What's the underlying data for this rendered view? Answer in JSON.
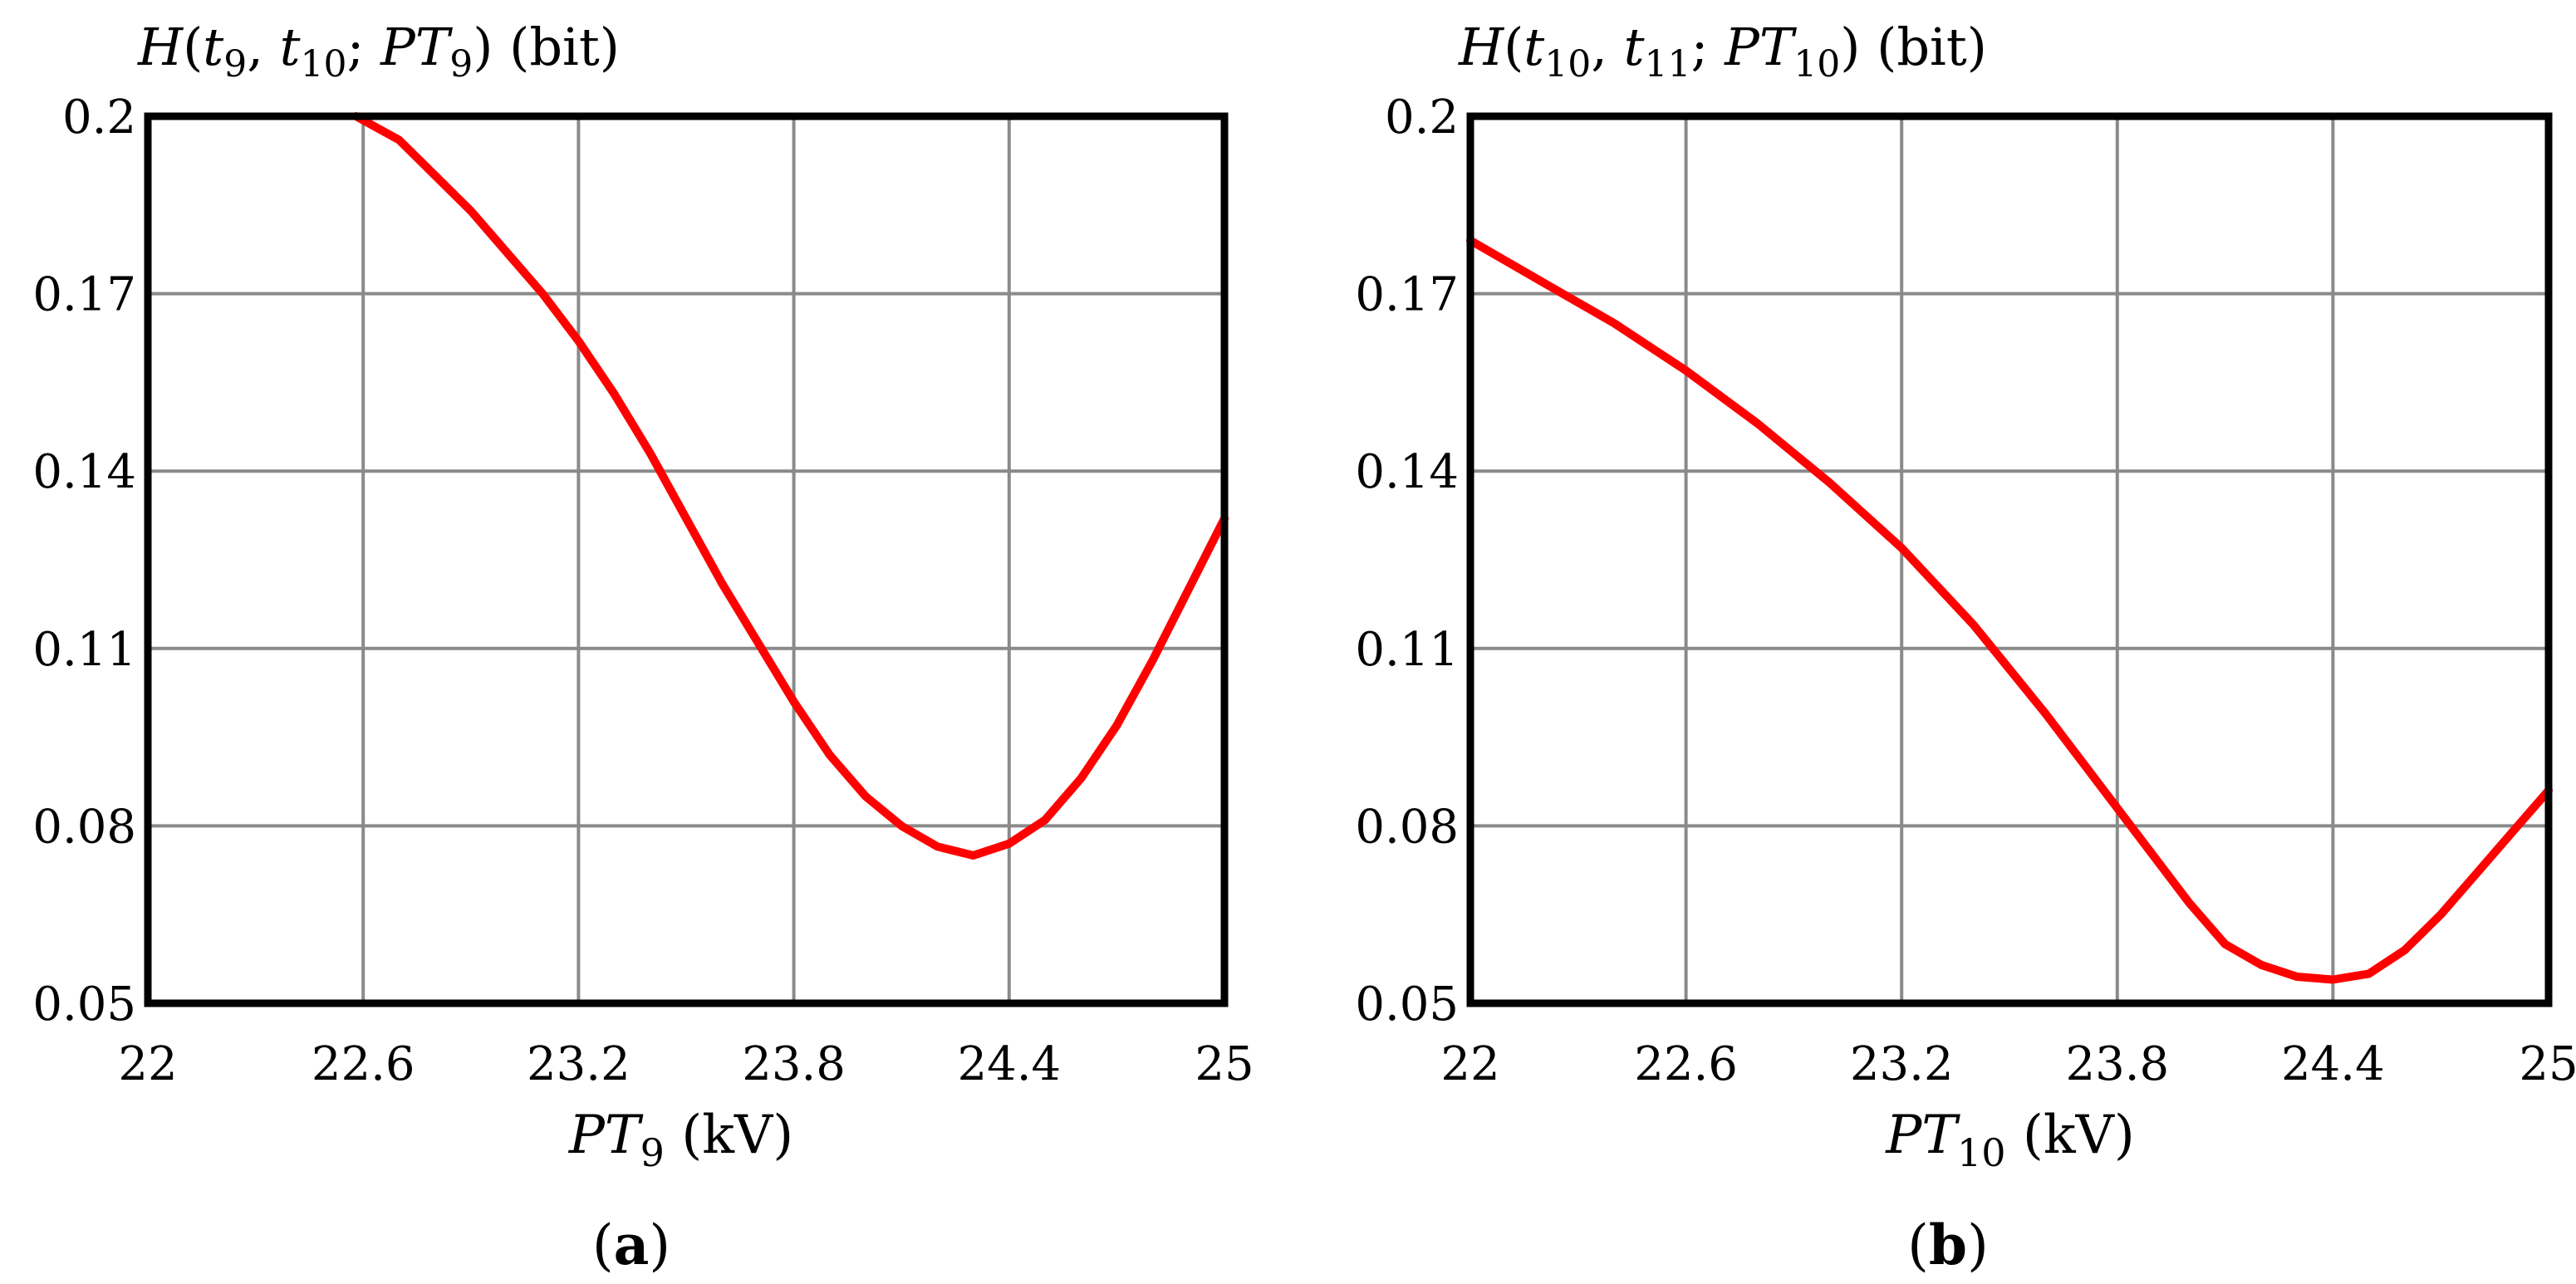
{
  "chart_data": [
    {
      "type": "line",
      "panel_caption": "(a)",
      "caption_open": "(",
      "caption_letter": "a",
      "caption_close": ")",
      "ylabel": {
        "H": "H",
        "open": "(",
        "t1": "t",
        "t1_sub": "9",
        "comma": ", ",
        "t2": "t",
        "t2_sub": "10",
        "semi": "; ",
        "pt": "PT",
        "pt_sub": "9",
        "close": ")",
        "unit": " (bit)"
      },
      "xlabel": {
        "pt": "PT",
        "pt_sub": "9",
        "unit": " (kV)"
      },
      "xlim": [
        22,
        25
      ],
      "ylim": [
        0.05,
        0.2
      ],
      "xticks": [
        22,
        22.6,
        23.2,
        23.8,
        24.4,
        25
      ],
      "xtick_labels": [
        "22",
        "22.6",
        "23.2",
        "23.8",
        "24.4",
        "25"
      ],
      "yticks": [
        0.05,
        0.08,
        0.11,
        0.14,
        0.17,
        0.2
      ],
      "ytick_labels": [
        "0.05",
        "0.08",
        "0.11",
        "0.14",
        "0.17",
        "0.2"
      ],
      "grid": true,
      "series": [
        {
          "color": "#ff0000",
          "x": [
            22.58,
            22.7,
            22.8,
            22.9,
            23.0,
            23.1,
            23.2,
            23.3,
            23.4,
            23.5,
            23.6,
            23.7,
            23.8,
            23.9,
            24.0,
            24.1,
            24.2,
            24.3,
            24.4,
            24.5,
            24.6,
            24.7,
            24.8,
            24.9,
            25.0
          ],
          "y": [
            0.2,
            0.196,
            0.19,
            0.184,
            0.177,
            0.17,
            0.162,
            0.153,
            0.143,
            0.132,
            0.121,
            0.111,
            0.101,
            0.092,
            0.085,
            0.08,
            0.0765,
            0.075,
            0.077,
            0.081,
            0.088,
            0.097,
            0.108,
            0.12,
            0.132
          ]
        }
      ]
    },
    {
      "type": "line",
      "panel_caption": "(b)",
      "caption_open": "(",
      "caption_letter": "b",
      "caption_close": ")",
      "ylabel": {
        "H": "H",
        "open": "(",
        "t1": "t",
        "t1_sub": "10",
        "comma": ", ",
        "t2": "t",
        "t2_sub": "11",
        "semi": "; ",
        "pt": "PT",
        "pt_sub": "10",
        "close": ")",
        "unit": " (bit)"
      },
      "xlabel": {
        "pt": "PT",
        "pt_sub": "10",
        "unit": " (kV)"
      },
      "xlim": [
        22,
        25
      ],
      "ylim": [
        0.05,
        0.2
      ],
      "xticks": [
        22,
        22.6,
        23.2,
        23.8,
        24.4,
        25
      ],
      "xtick_labels": [
        "22",
        "22.6",
        "23.2",
        "23.8",
        "24.4",
        "25"
      ],
      "yticks": [
        0.05,
        0.08,
        0.11,
        0.14,
        0.17,
        0.2
      ],
      "ytick_labels": [
        "0.05",
        "0.08",
        "0.11",
        "0.14",
        "0.17",
        "0.2"
      ],
      "grid": true,
      "series": [
        {
          "color": "#ff0000",
          "x": [
            22.0,
            22.2,
            22.4,
            22.6,
            22.8,
            23.0,
            23.2,
            23.4,
            23.6,
            23.8,
            24.0,
            24.1,
            24.2,
            24.3,
            24.4,
            24.5,
            24.6,
            24.7,
            24.8,
            24.9,
            25.0
          ],
          "y": [
            0.179,
            0.172,
            0.165,
            0.157,
            0.148,
            0.138,
            0.127,
            0.114,
            0.099,
            0.083,
            0.067,
            0.06,
            0.0565,
            0.0545,
            0.054,
            0.055,
            0.059,
            0.065,
            0.072,
            0.079,
            0.086
          ]
        }
      ]
    }
  ]
}
